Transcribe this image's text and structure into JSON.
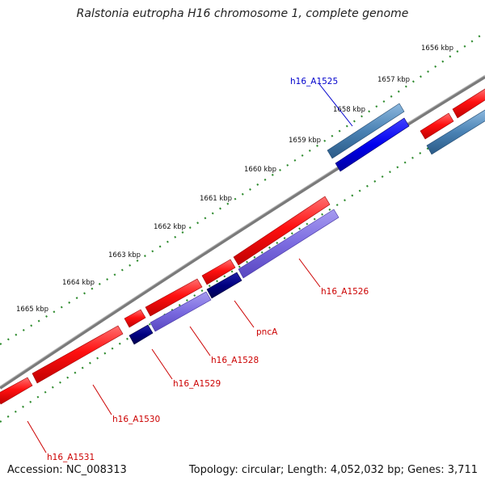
{
  "title": "Ralstonia eutropha H16 chromosome 1, complete genome",
  "footer": {
    "accession": "Accession: NC_008313",
    "summary": "Topology: circular; Length: 4,052,032 bp; Genes: 3,711"
  },
  "scale_labels": [
    "1656 kbp",
    "1657 kbp",
    "1658 kbp",
    "1659 kbp",
    "1660 kbp",
    "1661 kbp",
    "1662 kbp",
    "1663 kbp",
    "1664 kbp",
    "1665 kbp"
  ],
  "gene_labels": [
    {
      "text": "h16_A1525",
      "color": "#0000cc"
    },
    {
      "text": "h16_A1526",
      "color": "#cc0000"
    },
    {
      "text": "pncA",
      "color": "#cc0000"
    },
    {
      "text": "h16_A1528",
      "color": "#cc0000"
    },
    {
      "text": "h16_A1529",
      "color": "#cc0000"
    },
    {
      "text": "h16_A1530",
      "color": "#cc0000"
    },
    {
      "text": "h16_A1531",
      "color": "#cc0000"
    }
  ],
  "colors": {
    "cds_forward": "#ff1a1a",
    "gene_forward": "#d40000",
    "cds_reverse": "#0000ee",
    "gene_reverse": "#4a82b4",
    "purple": "#7b6be0",
    "navy": "#000080",
    "backbone": "#808080",
    "ticks": "#2e8b2e"
  }
}
